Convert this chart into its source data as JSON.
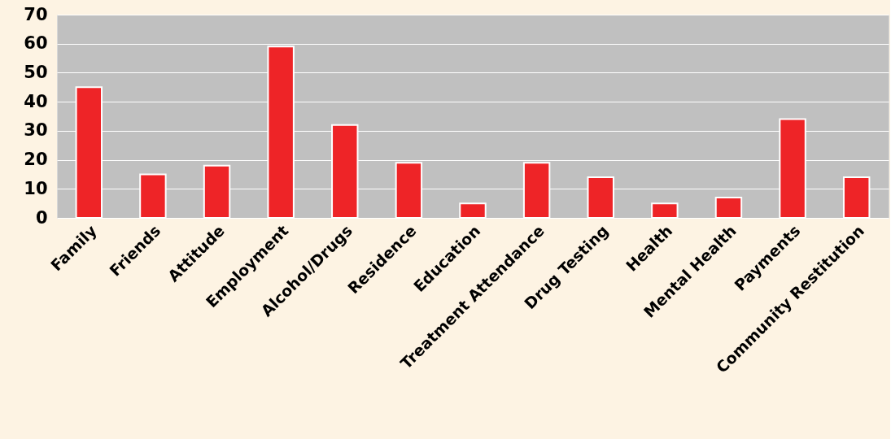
{
  "chart_data": {
    "type": "bar",
    "categories": [
      "Family",
      "Friends",
      "Attitude",
      "Employment",
      "Alcohol/Drugs",
      "Residence",
      "Education",
      "Treatment Attendance",
      "Drug Testing",
      "Health",
      "Mental Health",
      "Payments",
      "Community Restitution"
    ],
    "values": [
      45,
      15,
      18,
      59,
      32,
      19,
      5,
      19,
      14,
      5,
      7,
      34,
      14
    ],
    "color": "#ee2427",
    "ylim": [
      0,
      70
    ],
    "yticks": [
      0,
      10,
      20,
      30,
      40,
      50,
      60,
      70
    ],
    "grid": "y"
  }
}
